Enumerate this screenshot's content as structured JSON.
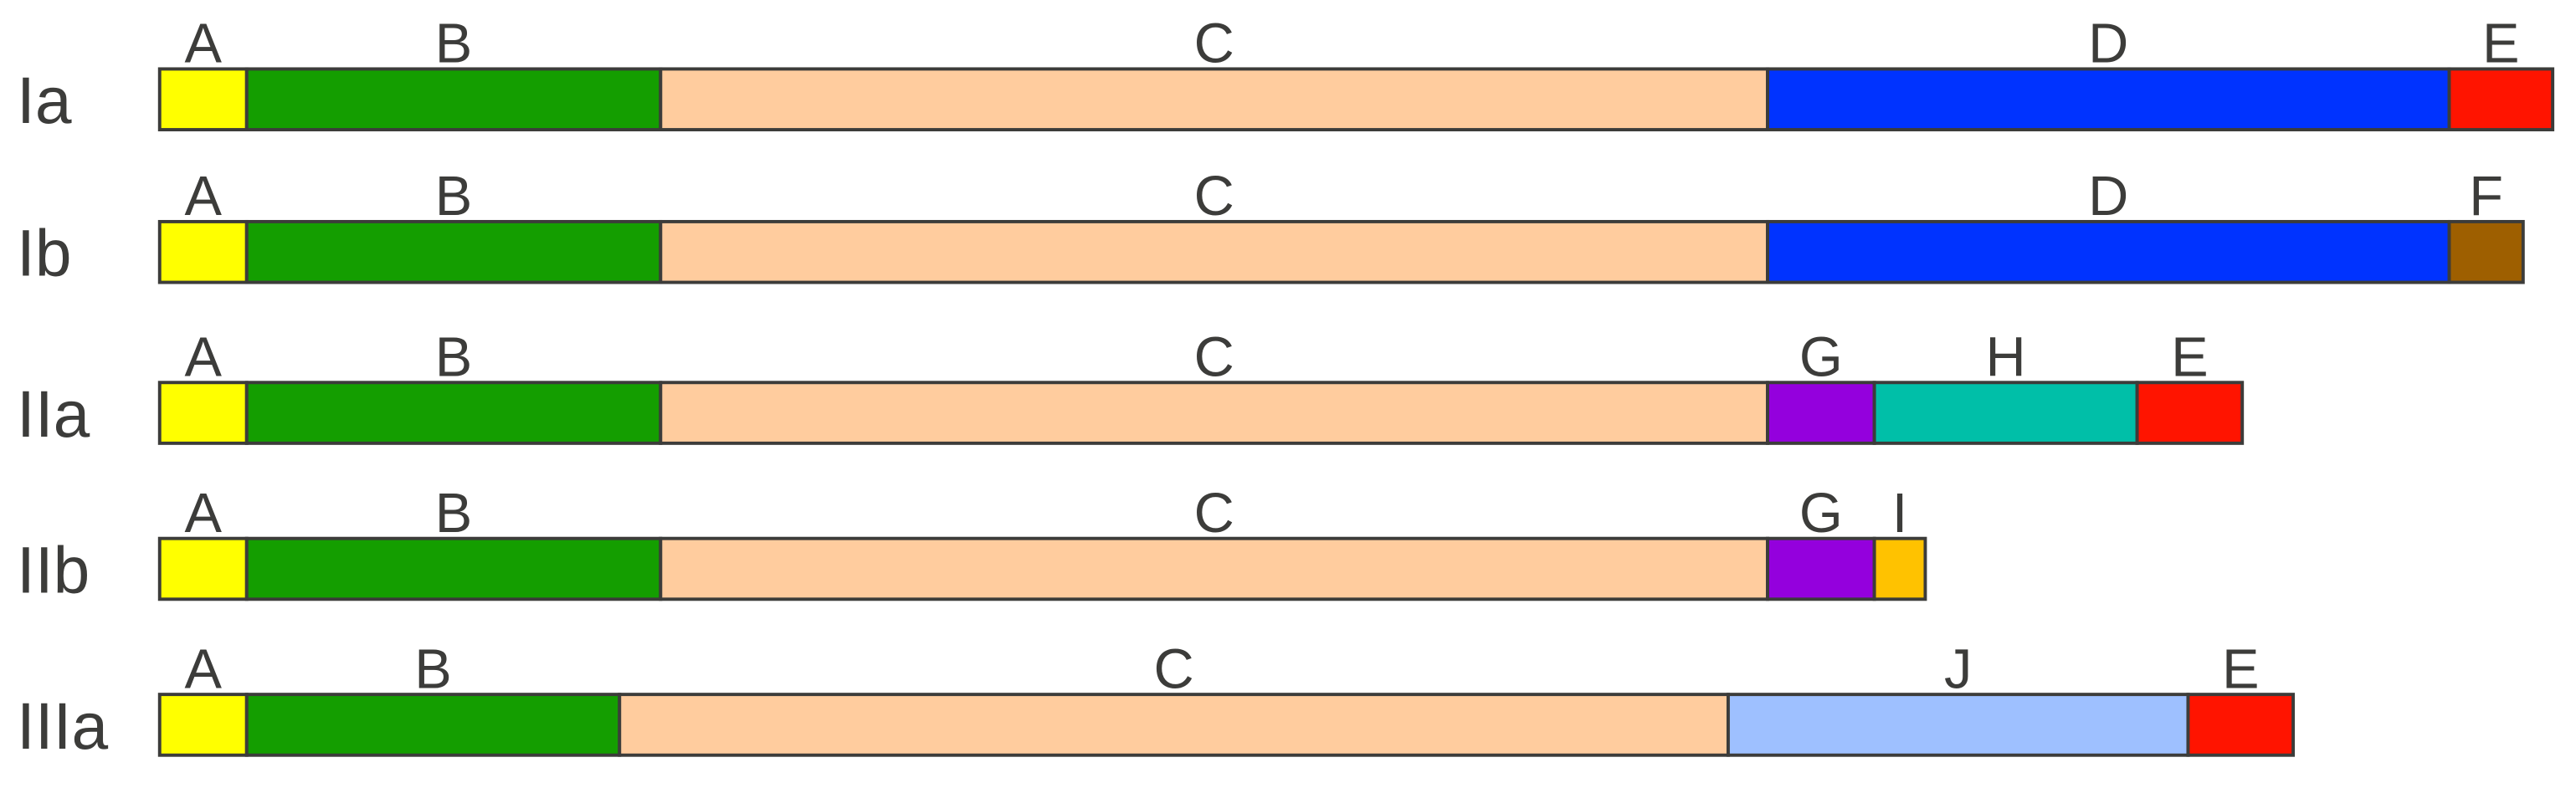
{
  "colors": {
    "A": "#ffff00",
    "B": "#149e00",
    "C": "#ffcc9e",
    "D": "#0033ff",
    "E": "#ff1400",
    "F": "#9e5f00",
    "G": "#9400dd",
    "H": "#00bfa8",
    "I": "#ffc200",
    "J": "#9ec0ff",
    "outline": "#3c3c3a",
    "text": "#3c3c3a"
  },
  "rows": [
    {
      "name": "Ia",
      "segments": [
        "A",
        "B",
        "C",
        "D",
        "E"
      ]
    },
    {
      "name": "Ib",
      "segments": [
        "A",
        "B",
        "C",
        "D",
        "F"
      ]
    },
    {
      "name": "IIa",
      "segments": [
        "A",
        "B",
        "C",
        "G",
        "H",
        "E"
      ]
    },
    {
      "name": "IIb",
      "segments": [
        "A",
        "B",
        "C",
        "G",
        "I"
      ]
    },
    {
      "name": "IIIa",
      "segments": [
        "A",
        "B",
        "C",
        "J",
        "E"
      ]
    }
  ]
}
